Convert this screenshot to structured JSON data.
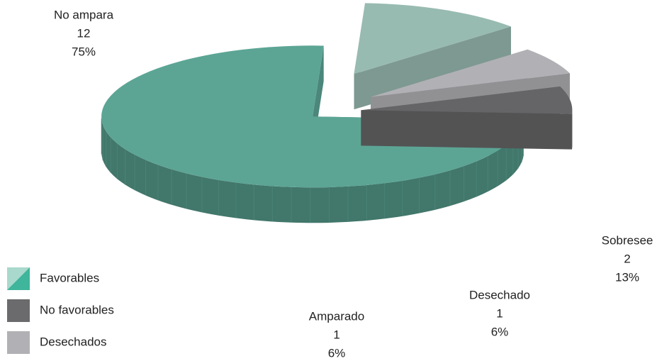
{
  "chart_data": {
    "type": "pie",
    "categories": [
      "No ampara",
      "Sobresee",
      "Desechado",
      "Amparado"
    ],
    "values": [
      12,
      2,
      1,
      1
    ],
    "percentages": [
      75,
      13,
      6,
      6
    ],
    "percentage_labels": [
      "75%",
      "13%",
      "6%",
      "6%"
    ],
    "colors": [
      "#5ca595",
      "#98bbb1",
      "#b1b1b5",
      "#656567"
    ],
    "legend": [
      {
        "name": "Favorables",
        "color": "#3fb59b"
      },
      {
        "name": "No favorables",
        "color": "#6b6b6e"
      },
      {
        "name": "Desechados",
        "color": "#b1b1b5"
      }
    ]
  }
}
